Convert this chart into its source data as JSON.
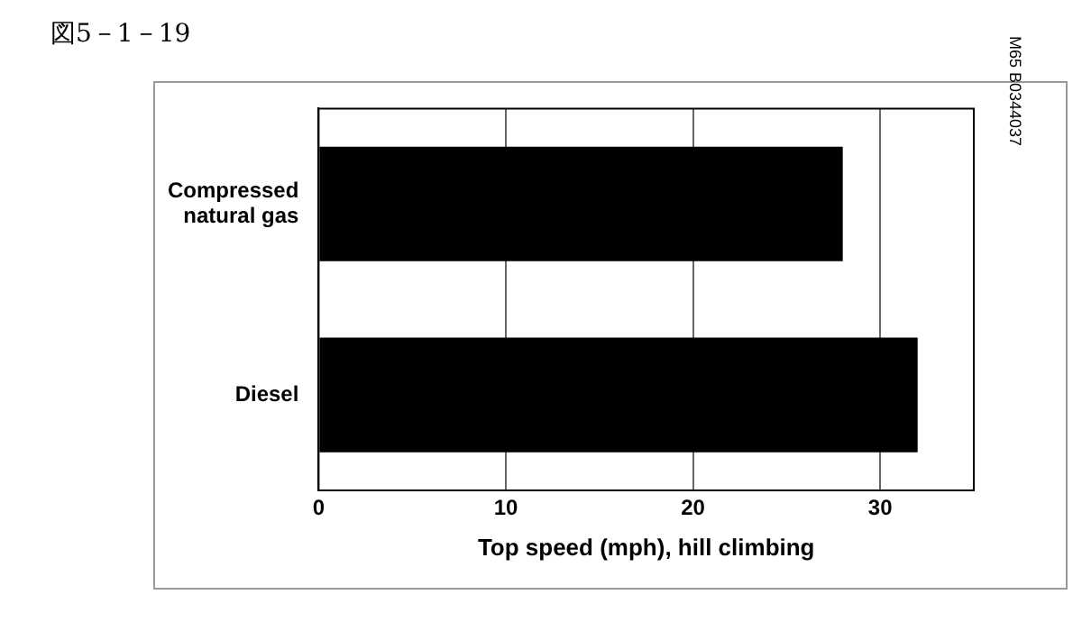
{
  "chart_data": {
    "type": "bar",
    "orientation": "horizontal",
    "title": "図5－1－19",
    "xlabel": "Top speed (mph), hill climbing",
    "categories": [
      "Compressed natural gas",
      "Diesel"
    ],
    "values": [
      28,
      32
    ],
    "color": "#000000",
    "xlim": [
      0,
      35
    ],
    "xticks": [
      0,
      10,
      20,
      30
    ],
    "grid": "x",
    "legend": false,
    "annotations": [
      "M65 B0344037"
    ]
  }
}
